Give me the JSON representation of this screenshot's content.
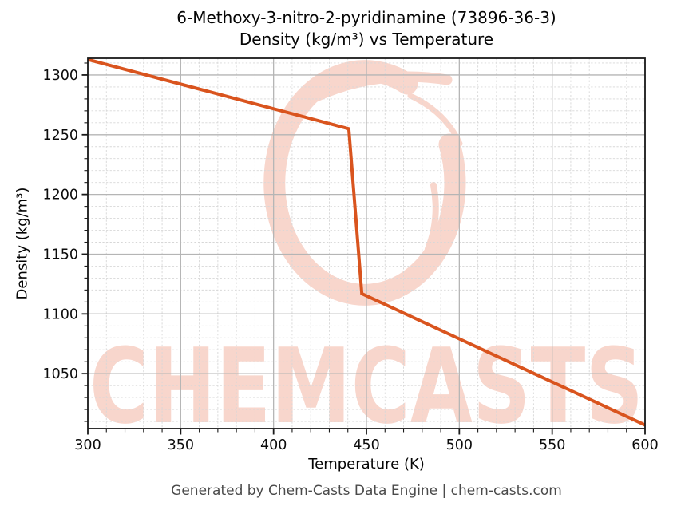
{
  "title": {
    "line1": "6-Methoxy-3-nitro-2-pyridinamine (73896-36-3)",
    "line2": "Density (kg/m³) vs Temperature"
  },
  "footer": "Generated by Chem-Casts Data Engine | chem-casts.com",
  "watermark": {
    "text": "CHEMCASTS",
    "color": "#f8d6cc"
  },
  "colors": {
    "line": "#d9541e",
    "major_grid": "#b5b5b5",
    "minor_grid": "#d7d7d7",
    "spine": "#1a1a1a",
    "tick": "#1a1a1a",
    "tick_label": "#0c0c0c",
    "footer_text": "#4a4a4a"
  },
  "chart_data": {
    "type": "line",
    "title": "6-Methoxy-3-nitro-2-pyridinamine (73896-36-3) — Density (kg/m³) vs Temperature",
    "xlabel": "Temperature (K)",
    "ylabel": "Density (kg/m³)",
    "xlim": [
      300,
      600
    ],
    "ylim": [
      1004,
      1314
    ],
    "x_ticks": [
      300,
      350,
      400,
      450,
      500,
      550,
      600
    ],
    "y_ticks": [
      1050,
      1100,
      1150,
      1200,
      1250,
      1300
    ],
    "x_minor_step": 10,
    "y_minor_step": 10,
    "grid": true,
    "legend": "none",
    "series": [
      {
        "name": "Density (kg/m³)",
        "color": "#d9541e",
        "points": [
          [
            300,
            1313
          ],
          [
            440.5,
            1255
          ],
          [
            447.5,
            1117
          ],
          [
            600,
            1007
          ]
        ],
        "note": "solid-to-liquid density drop near 440–448 K"
      }
    ]
  }
}
